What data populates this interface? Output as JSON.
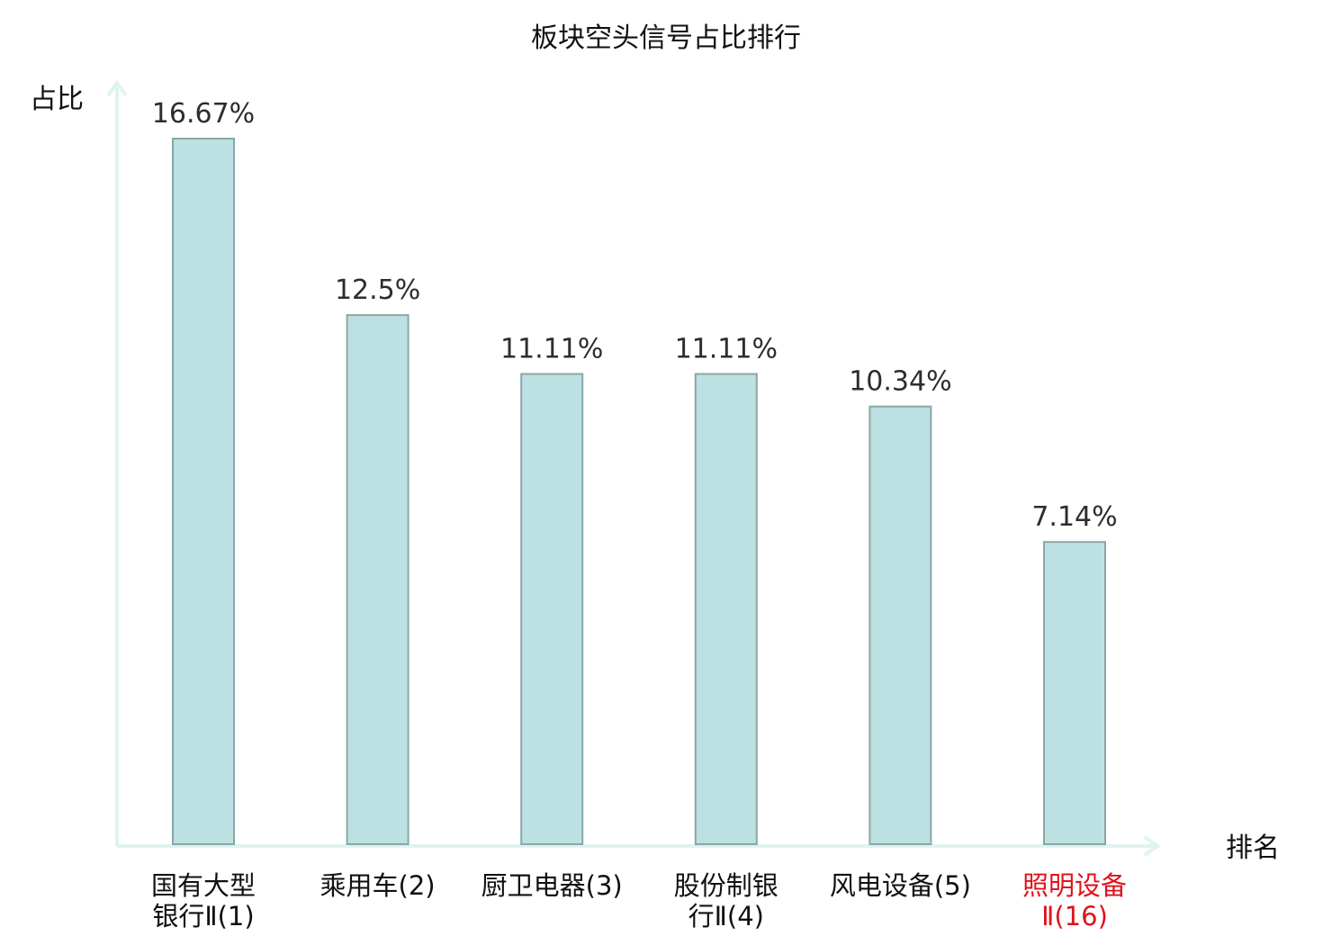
{
  "chart_data": {
    "type": "bar",
    "title": "板块空头信号占比排行",
    "ylabel": "占比",
    "xlabel": "排名",
    "ylim": [
      0,
      20
    ],
    "categories": [
      [
        "国有大型",
        "银行Ⅱ(1)"
      ],
      [
        "乘用车(2)"
      ],
      [
        "厨卫电器(3)"
      ],
      [
        "股份制银",
        "行Ⅱ(4)"
      ],
      [
        "风电设备(5)"
      ],
      [
        "照明设备",
        "Ⅱ(16)"
      ]
    ],
    "values": [
      16.67,
      12.5,
      11.11,
      11.11,
      10.34,
      7.14
    ],
    "value_labels": [
      "16.67%",
      "12.5%",
      "11.11%",
      "11.11%",
      "10.34%",
      "7.14%"
    ],
    "highlight_index": 5,
    "colors": {
      "bar_fill": "#bde0e3",
      "bar_stroke": "#8aa7a8",
      "axis": "#dff3ef",
      "highlight_text": "#e0121c"
    },
    "grid": false
  }
}
